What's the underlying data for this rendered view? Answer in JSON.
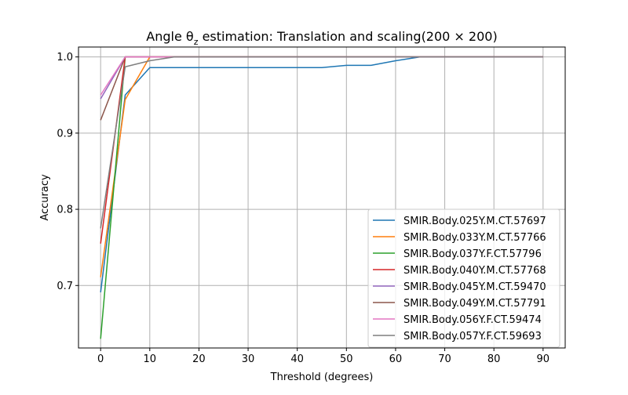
{
  "chart_data": {
    "type": "line",
    "title": "Angle θ",
    "title_subscript": "z",
    "title_rest": " estimation: Translation and scaling(200 × 200)",
    "xlabel": "Threshold (degrees)",
    "ylabel": "Accuracy",
    "xlim": [
      -4.5,
      94.5
    ],
    "ylim": [
      0.618,
      1.013
    ],
    "xticks": [
      0,
      10,
      20,
      30,
      40,
      50,
      60,
      70,
      80,
      90
    ],
    "yticks": [
      0.7,
      0.8,
      0.9,
      1.0
    ],
    "ytick_labels": [
      "0.7",
      "0.8",
      "0.9",
      "1.0"
    ],
    "grid": true,
    "legend_position": "lower right",
    "x": [
      0,
      5,
      10,
      15,
      20,
      25,
      30,
      35,
      40,
      45,
      50,
      55,
      60,
      65,
      70,
      75,
      80,
      85,
      90
    ],
    "series": [
      {
        "name": "SMIR.Body.025Y.M.CT.57697",
        "color": "#1f77b4",
        "values": [
          0.691,
          0.95,
          0.986,
          0.986,
          0.986,
          0.986,
          0.986,
          0.986,
          0.986,
          0.986,
          0.989,
          0.989,
          0.995,
          1.0,
          1.0,
          1.0,
          1.0,
          1.0,
          1.0
        ]
      },
      {
        "name": "SMIR.Body.033Y.M.CT.57766",
        "color": "#ff7f0e",
        "values": [
          0.711,
          0.944,
          1.0,
          1.0,
          1.0,
          1.0,
          1.0,
          1.0,
          1.0,
          1.0,
          1.0,
          1.0,
          1.0,
          1.0,
          1.0,
          1.0,
          1.0,
          1.0,
          1.0
        ]
      },
      {
        "name": "SMIR.Body.037Y.F.CT.57796",
        "color": "#2ca02c",
        "values": [
          0.63,
          1.0,
          1.0,
          1.0,
          1.0,
          1.0,
          1.0,
          1.0,
          1.0,
          1.0,
          1.0,
          1.0,
          1.0,
          1.0,
          1.0,
          1.0,
          1.0,
          1.0,
          1.0
        ]
      },
      {
        "name": "SMIR.Body.040Y.M.CT.57768",
        "color": "#d62728",
        "values": [
          0.755,
          1.0,
          1.0,
          1.0,
          1.0,
          1.0,
          1.0,
          1.0,
          1.0,
          1.0,
          1.0,
          1.0,
          1.0,
          1.0,
          1.0,
          1.0,
          1.0,
          1.0,
          1.0
        ]
      },
      {
        "name": "SMIR.Body.045Y.M.CT.59470",
        "color": "#9467bd",
        "values": [
          0.945,
          1.0,
          1.0,
          1.0,
          1.0,
          1.0,
          1.0,
          1.0,
          1.0,
          1.0,
          1.0,
          1.0,
          1.0,
          1.0,
          1.0,
          1.0,
          1.0,
          1.0,
          1.0
        ]
      },
      {
        "name": "SMIR.Body.049Y.M.CT.57791",
        "color": "#8c564b",
        "values": [
          0.917,
          1.0,
          1.0,
          1.0,
          1.0,
          1.0,
          1.0,
          1.0,
          1.0,
          1.0,
          1.0,
          1.0,
          1.0,
          1.0,
          1.0,
          1.0,
          1.0,
          1.0,
          1.0
        ]
      },
      {
        "name": "SMIR.Body.056Y.F.CT.59474",
        "color": "#e377c2",
        "values": [
          0.95,
          1.0,
          1.0,
          1.0,
          1.0,
          1.0,
          1.0,
          1.0,
          1.0,
          1.0,
          1.0,
          1.0,
          1.0,
          1.0,
          1.0,
          1.0,
          1.0,
          1.0,
          1.0
        ]
      },
      {
        "name": "SMIR.Body.057Y.F.CT.59693",
        "color": "#7f7f7f",
        "values": [
          0.775,
          0.987,
          0.995,
          1.0,
          1.0,
          1.0,
          1.0,
          1.0,
          1.0,
          1.0,
          1.0,
          1.0,
          1.0,
          1.0,
          1.0,
          1.0,
          1.0,
          1.0,
          1.0
        ]
      }
    ]
  }
}
